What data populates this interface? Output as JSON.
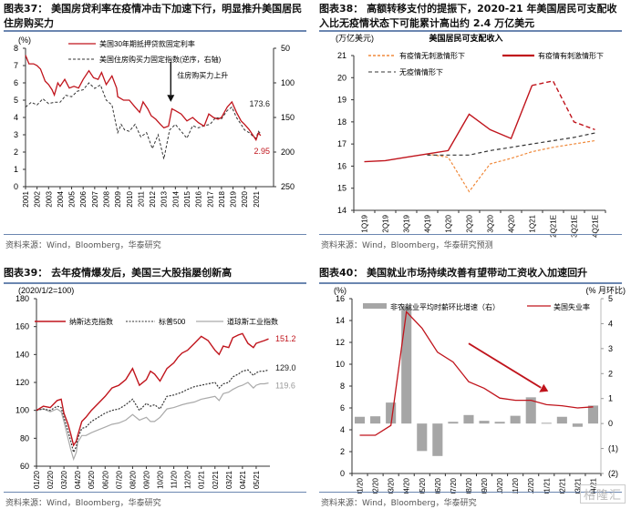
{
  "panels": [
    {
      "title": "图表37： 美国房贷利率在疫情冲击下加速下行，明显推升美国居民住房购买力",
      "source": "资料来源：Wind，Bloomberg，华泰研究"
    },
    {
      "title": "图表38： 高额转移支付的提振下，2020-21 年美国居民可支配收入比无疫情状态下可能累计高出约 2.4 万亿美元",
      "source": "资料来源：Wind，Bloomberg，华泰研究预测"
    },
    {
      "title": "图表39： 去年疫情爆发后，美国三大股指屡创新高",
      "source": "资料来源：Wind，Bloomberg，华泰研究"
    },
    {
      "title": "图表40： 美国就业市场持续改善有望带动工资收入加速回升",
      "source": "资料来源：Wind，Bloomberg，华泰研究"
    }
  ],
  "watermark": "格隆汇",
  "chart_data": [
    {
      "type": "line",
      "title": "",
      "ylabel_left": "(%)",
      "ylim_left": [
        0,
        8
      ],
      "yticks_left": [
        "0",
        "1",
        "2",
        "3",
        "4",
        "5",
        "6",
        "7",
        "8"
      ],
      "ylim_right": [
        50,
        250
      ],
      "yticks_right": [
        "50",
        "100",
        "150",
        "200",
        "250"
      ],
      "right_axis_inverted": true,
      "x_ticks": [
        "2001",
        "2002",
        "2003",
        "2004",
        "2005",
        "2006",
        "2007",
        "2008",
        "2009",
        "2010",
        "2011",
        "2012",
        "2013",
        "2014",
        "2015",
        "2016",
        "2017",
        "2018",
        "2019",
        "2020",
        "2021"
      ],
      "legend": [
        "美国30年期抵押贷款固定利率",
        "美国住房购买力固定指数(逆序，右轴)"
      ],
      "annotation": "住房购买力上升",
      "end_labels": {
        "rate": "2.95",
        "index": "173.6"
      },
      "series": [
        {
          "name": "美国30年期抵押贷款固定利率",
          "axis": "left",
          "color": "#c0141c",
          "x": [
            2001.0,
            2001.3,
            2001.7,
            2002.0,
            2002.3,
            2002.7,
            2003.0,
            2003.3,
            2003.5,
            2003.8,
            2004.0,
            2004.4,
            2004.8,
            2005.2,
            2005.6,
            2006.0,
            2006.5,
            2006.9,
            2007.3,
            2007.6,
            2008.0,
            2008.5,
            2008.9,
            2009.0,
            2009.5,
            2010.0,
            2010.5,
            2010.9,
            2011.2,
            2011.6,
            2011.9,
            2012.3,
            2012.7,
            2013.0,
            2013.4,
            2013.7,
            2014.0,
            2014.5,
            2015.0,
            2015.5,
            2016.0,
            2016.5,
            2016.9,
            2017.3,
            2017.7,
            2018.0,
            2018.5,
            2018.9,
            2019.3,
            2019.7,
            2020.0,
            2020.4,
            2020.8,
            2021.0,
            2021.2,
            2021.4
          ],
          "values": [
            7.6,
            7.1,
            7.1,
            7.0,
            6.8,
            6.1,
            5.9,
            5.6,
            5.3,
            6.0,
            5.8,
            6.2,
            5.7,
            5.8,
            5.7,
            6.2,
            6.7,
            6.3,
            6.2,
            6.6,
            5.9,
            6.4,
            5.7,
            5.2,
            5.0,
            5.0,
            4.6,
            4.3,
            4.9,
            4.5,
            4.1,
            3.9,
            3.6,
            3.4,
            3.5,
            4.5,
            4.4,
            4.2,
            3.8,
            4.0,
            3.7,
            3.5,
            4.2,
            4.0,
            3.9,
            4.0,
            4.6,
            4.9,
            4.3,
            3.8,
            3.6,
            3.3,
            2.9,
            2.7,
            3.1,
            2.95
          ]
        },
        {
          "name": "美国住房购买力固定指数(逆序，右轴)",
          "axis": "right",
          "color": "#333333",
          "x": [
            2001.0,
            2001.5,
            2002.0,
            2002.5,
            2003.0,
            2003.5,
            2004.0,
            2004.5,
            2005.0,
            2005.5,
            2006.0,
            2006.5,
            2007.0,
            2007.5,
            2008.0,
            2008.5,
            2009.0,
            2009.3,
            2009.6,
            2010.0,
            2010.5,
            2011.0,
            2011.5,
            2012.0,
            2012.5,
            2013.0,
            2013.5,
            2014.0,
            2014.5,
            2015.0,
            2015.5,
            2016.0,
            2016.5,
            2017.0,
            2017.5,
            2018.0,
            2018.5,
            2018.9,
            2019.3,
            2019.7,
            2020.0,
            2020.4,
            2020.8,
            2021.0,
            2021.2,
            2021.4
          ],
          "values": [
            135,
            128,
            132,
            123,
            130,
            128,
            128,
            118,
            120,
            112,
            110,
            100,
            108,
            103,
            125,
            132,
            172,
            160,
            168,
            170,
            160,
            178,
            172,
            195,
            175,
            210,
            168,
            160,
            170,
            180,
            162,
            165,
            162,
            160,
            150,
            152,
            140,
            135,
            150,
            160,
            168,
            172,
            178,
            180,
            170,
            173.6
          ]
        }
      ]
    },
    {
      "type": "line",
      "title": "美国居民可支配收入",
      "ylabel": "(万亿美元)",
      "ylim": [
        14,
        21
      ],
      "yticks": [
        "14",
        "15",
        "16",
        "17",
        "18",
        "19",
        "20",
        "21"
      ],
      "categories": [
        "1Q19",
        "2Q19",
        "3Q19",
        "4Q19",
        "1Q20",
        "2Q20",
        "3Q20",
        "4Q20",
        "1Q21",
        "2Q21E",
        "3Q21E",
        "4Q21E"
      ],
      "series": [
        {
          "name": "有疫情无刺激情形下",
          "color": "#f08a3c",
          "style": "dotted",
          "values": [
            null,
            null,
            null,
            16.55,
            16.4,
            14.85,
            16.1,
            16.35,
            16.65,
            16.85,
            17.0,
            17.15
          ]
        },
        {
          "name": "有疫情有刺激情形下",
          "color": "#c0141c",
          "style": "solid",
          "values": [
            16.2,
            16.25,
            16.4,
            16.55,
            16.7,
            18.35,
            17.65,
            17.25,
            19.65,
            19.85,
            18.0,
            17.65
          ],
          "dashed_from": "1Q21"
        },
        {
          "name": "无疫情情形下",
          "color": "#333333",
          "style": "dashed",
          "values": [
            null,
            null,
            null,
            16.5,
            16.5,
            16.5,
            16.7,
            16.85,
            17.0,
            17.15,
            17.3,
            17.5
          ]
        }
      ]
    },
    {
      "type": "line",
      "title": "",
      "ylabel": "(2020/1/2=100)",
      "ylim": [
        60,
        180
      ],
      "yticks": [
        "60",
        "80",
        "100",
        "120",
        "140",
        "160",
        "180"
      ],
      "x_ticks": [
        "01/20",
        "02/20",
        "03/20",
        "04/20",
        "05/20",
        "06/20",
        "07/20",
        "08/20",
        "09/20",
        "10/20",
        "11/20",
        "12/20",
        "01/21",
        "02/21",
        "03/21",
        "04/21",
        "05/21"
      ],
      "end_labels": [
        "151.2",
        "129.0",
        "119.6"
      ],
      "series": [
        {
          "name": "纳斯达克指数",
          "color": "#c0141c",
          "style": "solid",
          "x": [
            0,
            0.5,
            1.0,
            1.5,
            1.8,
            2.0,
            2.3,
            2.5,
            2.7,
            2.9,
            3.0,
            3.3,
            3.6,
            4.0,
            4.5,
            5.0,
            5.5,
            6.0,
            6.5,
            7.0,
            7.5,
            8.0,
            8.3,
            8.6,
            9.0,
            9.5,
            10.0,
            10.3,
            10.6,
            11.0,
            11.5,
            12.0,
            12.5,
            13.0,
            13.3,
            13.6,
            14.0,
            14.3,
            14.7,
            15.0,
            15.4,
            15.8,
            16.0,
            16.3,
            16.6,
            16.9
          ],
          "values": [
            100,
            103,
            102,
            107,
            108,
            98,
            90,
            83,
            75,
            78,
            82,
            92,
            95,
            100,
            105,
            110,
            116,
            118,
            122,
            130,
            118,
            122,
            128,
            126,
            121,
            130,
            134,
            138,
            141,
            143,
            148,
            153,
            150,
            143,
            140,
            146,
            145,
            152,
            154,
            155,
            148,
            145,
            148,
            149,
            150,
            151.2
          ]
        },
        {
          "name": "标普500",
          "color": "#333333",
          "style": "dotted",
          "x": [
            0,
            0.5,
            1.0,
            1.5,
            1.8,
            2.0,
            2.3,
            2.5,
            2.7,
            2.9,
            3.0,
            3.3,
            3.6,
            4.0,
            4.5,
            5.0,
            5.5,
            6.0,
            6.5,
            7.0,
            7.5,
            8.0,
            8.3,
            8.6,
            9.0,
            9.5,
            10.0,
            10.3,
            10.6,
            11.0,
            11.5,
            12.0,
            12.5,
            13.0,
            13.3,
            13.6,
            14.0,
            14.3,
            14.7,
            15.0,
            15.4,
            15.8,
            16.0,
            16.3,
            16.6,
            16.9
          ],
          "values": [
            100,
            101,
            100,
            103,
            102,
            95,
            85,
            78,
            70,
            74,
            80,
            87,
            88,
            92,
            95,
            98,
            100,
            101,
            104,
            108,
            100,
            105,
            103,
            104,
            101,
            110,
            111,
            112,
            113,
            115,
            117,
            118,
            119,
            120,
            116,
            119,
            120,
            124,
            126,
            128,
            129,
            125,
            127,
            128,
            128,
            129.0
          ]
        },
        {
          "name": "道琼斯工业指数",
          "color": "#aaaaaa",
          "style": "solid",
          "x": [
            0,
            0.5,
            1.0,
            1.5,
            1.8,
            2.0,
            2.3,
            2.5,
            2.7,
            2.9,
            3.0,
            3.3,
            3.6,
            4.0,
            4.5,
            5.0,
            5.5,
            6.0,
            6.5,
            7.0,
            7.5,
            8.0,
            8.3,
            8.6,
            9.0,
            9.5,
            10.0,
            10.3,
            10.6,
            11.0,
            11.5,
            12.0,
            12.5,
            13.0,
            13.3,
            13.6,
            14.0,
            14.3,
            14.7,
            15.0,
            15.4,
            15.8,
            16.0,
            16.3,
            16.6,
            16.9
          ],
          "values": [
            100,
            101,
            99,
            101,
            99,
            92,
            80,
            72,
            65,
            70,
            77,
            82,
            82,
            84,
            86,
            88,
            90,
            91,
            93,
            97,
            93,
            95,
            92,
            92,
            95,
            101,
            102,
            103,
            104,
            105,
            106,
            108,
            109,
            110,
            107,
            112,
            113,
            115,
            117,
            118,
            120,
            116,
            118,
            119,
            119,
            119.6
          ]
        }
      ]
    },
    {
      "type": "bar+line",
      "title": "",
      "ylabel_left": "(%)",
      "ylabel_right": "(% 月环比)",
      "ylim_left": [
        0,
        16
      ],
      "yticks_left": [
        "0",
        "2",
        "4",
        "6",
        "8",
        "10",
        "12",
        "14",
        "16"
      ],
      "ylim_right": [
        -2,
        5
      ],
      "yticks_right": [
        "(2)",
        "(1)",
        "0",
        "1",
        "2",
        "3",
        "4",
        "5"
      ],
      "categories": [
        "01/20",
        "02/20",
        "03/20",
        "04/20",
        "05/20",
        "06/20",
        "07/20",
        "08/20",
        "09/20",
        "10/20",
        "11/20",
        "12/20",
        "01/21",
        "02/21",
        "03/21",
        "04/21"
      ],
      "series": [
        {
          "name": "非农就业平均时薪环比增速（右）",
          "type": "bar",
          "axis": "right",
          "color": "#a6a6a6",
          "values": [
            0.27,
            0.29,
            0.84,
            4.7,
            -1.1,
            -1.3,
            0.07,
            0.34,
            0.11,
            0.07,
            0.31,
            1.05,
            0.03,
            0.27,
            -0.13,
            0.72
          ]
        },
        {
          "name": "美国失业率",
          "type": "line",
          "axis": "left",
          "color": "#c0141c",
          "values": [
            3.5,
            3.5,
            4.4,
            14.8,
            13.3,
            11.1,
            10.2,
            8.4,
            7.8,
            6.9,
            6.7,
            6.7,
            6.3,
            6.2,
            6.0,
            6.1
          ]
        }
      ],
      "trend_arrow": {
        "from_category": "08/20",
        "to_category": "01/21",
        "from_value_left": 11.9,
        "to_value_left": 7.6
      }
    }
  ]
}
